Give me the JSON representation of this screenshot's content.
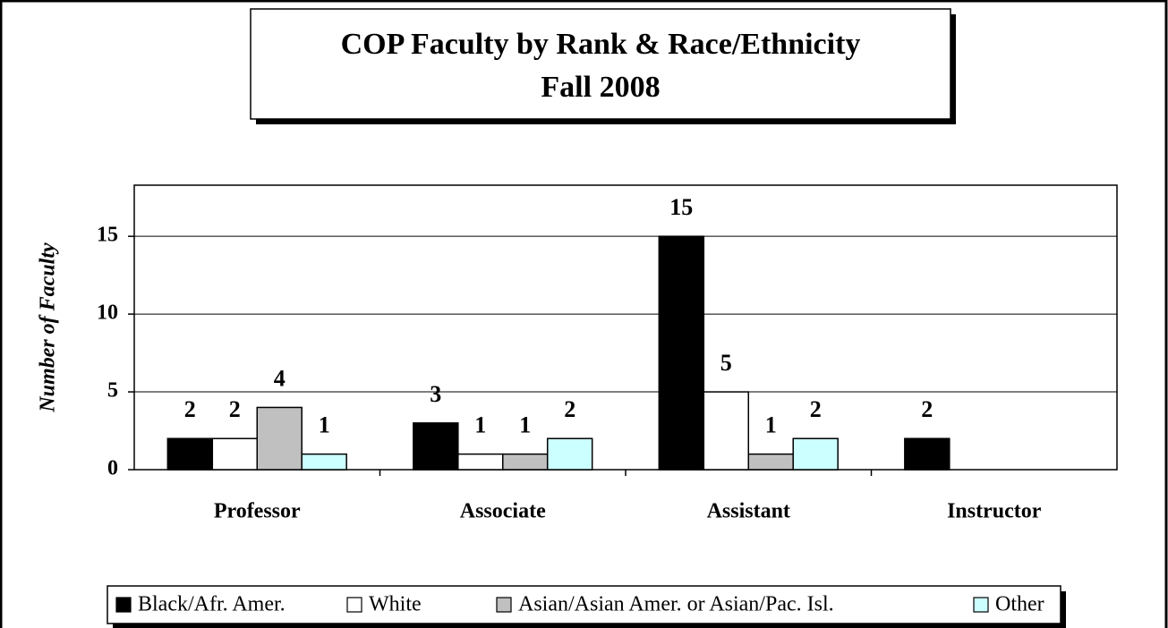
{
  "chart_data": {
    "type": "bar",
    "title": "COP Faculty by Rank & Race/Ethnicity",
    "subtitle": "Fall 2008",
    "y_label": "Number of Faculty",
    "categories": [
      "Professor",
      "Associate",
      "Assistant",
      "Instructor"
    ],
    "series": [
      {
        "name": "Black/Afr. Amer.",
        "color": "#000000",
        "values": [
          2,
          3,
          15,
          2
        ]
      },
      {
        "name": "White",
        "color": "#ffffff",
        "values": [
          2,
          1,
          5,
          null
        ]
      },
      {
        "name": "Asian/Asian Amer. or Asian/Pac. Isl.",
        "color": "#c0c0c0",
        "values": [
          4,
          1,
          1,
          null
        ]
      },
      {
        "name": "Other",
        "color": "#ccffff",
        "values": [
          1,
          2,
          2,
          null
        ]
      }
    ],
    "ylim": [
      0,
      18
    ],
    "yticks": [
      0,
      5,
      10,
      15
    ],
    "grid": true,
    "legend": "bottom"
  }
}
